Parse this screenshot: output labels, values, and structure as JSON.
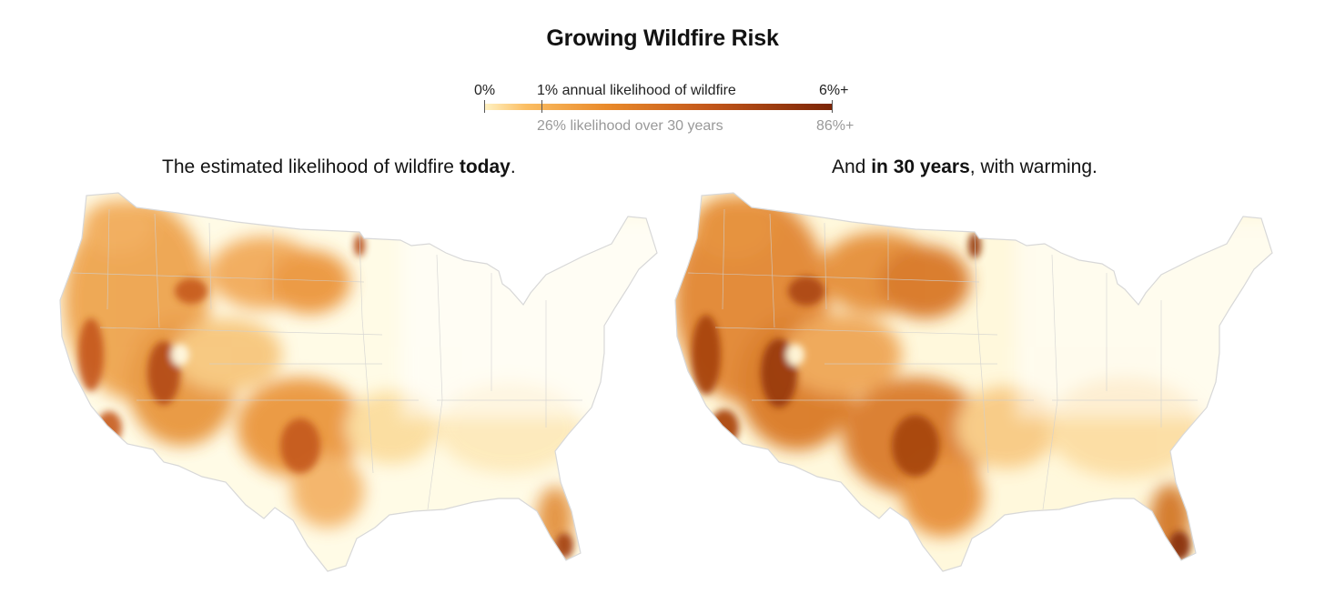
{
  "title": "Growing Wildfire Risk",
  "legend": {
    "min_label": "0%",
    "mid_label": "1% annual likelihood of wildfire",
    "max_label": "6%+",
    "mid_label_30yr": "26% likelihood over 30 years",
    "max_label_30yr": "86%+",
    "colors": [
      "#fff2c4",
      "#fbbe63",
      "#e98a2a",
      "#c2561a",
      "#7a2406"
    ]
  },
  "panels": [
    {
      "text_pre": "The estimated likelihood of wildfire ",
      "text_bold": "today",
      "text_post": "."
    },
    {
      "text_pre": "And ",
      "text_bold": "in 30 years",
      "text_post": ", with warming."
    }
  ]
}
